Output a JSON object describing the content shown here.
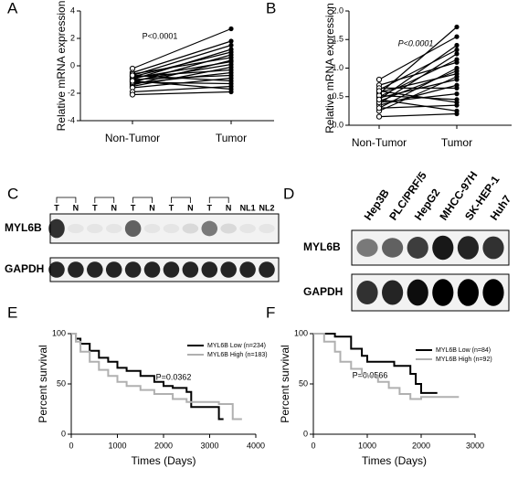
{
  "chart_data": [
    {
      "type": "paired",
      "panel": "A",
      "ylabel": "Relative mRNA expression",
      "categories": [
        "Non-Tumor",
        "Tumor"
      ],
      "annotation": "P<0.0001",
      "ylim": [
        -4,
        4
      ],
      "yticks": [
        -4,
        -2,
        0,
        2,
        4
      ],
      "pairs": [
        [
          -0.2,
          2.7
        ],
        [
          -0.5,
          1.8
        ],
        [
          -0.7,
          1.5
        ],
        [
          -1.0,
          1.2
        ],
        [
          -0.8,
          1.0
        ],
        [
          -1.2,
          0.8
        ],
        [
          -0.6,
          0.6
        ],
        [
          -1.4,
          0.4
        ],
        [
          -0.9,
          0.3
        ],
        [
          -1.1,
          0.1
        ],
        [
          -1.5,
          -0.1
        ],
        [
          -0.8,
          -0.3
        ],
        [
          -1.3,
          -0.5
        ],
        [
          -1.0,
          -0.7
        ],
        [
          -1.6,
          -0.9
        ],
        [
          -0.7,
          -1.1
        ],
        [
          -1.2,
          -1.3
        ],
        [
          -1.9,
          -1.5
        ],
        [
          -1.1,
          -1.7
        ],
        [
          -2.1,
          -1.9
        ]
      ]
    },
    {
      "type": "paired",
      "panel": "B",
      "ylabel": "Relative mRNA expression",
      "categories": [
        "Non-Tumor",
        "Tumor"
      ],
      "annotation": "P<0.0001",
      "ylim": [
        0,
        2
      ],
      "yticks": [
        {
          "value": 0,
          "label": "0.0"
        },
        {
          "value": 0.5,
          "label": "0.5"
        },
        {
          "value": 1,
          "label": "1.0"
        },
        {
          "value": 1.5,
          "label": "1.5"
        },
        {
          "value": 2,
          "label": "2.0"
        }
      ],
      "pairs": [
        [
          0.55,
          1.72
        ],
        [
          0.8,
          1.55
        ],
        [
          0.45,
          1.4
        ],
        [
          0.62,
          1.32
        ],
        [
          0.38,
          1.25
        ],
        [
          0.5,
          1.15
        ],
        [
          0.7,
          1.1
        ],
        [
          0.3,
          1.0
        ],
        [
          0.42,
          0.95
        ],
        [
          0.58,
          0.9
        ],
        [
          0.25,
          0.85
        ],
        [
          0.48,
          0.8
        ],
        [
          0.35,
          0.7
        ],
        [
          0.65,
          0.65
        ],
        [
          0.4,
          0.55
        ],
        [
          0.52,
          0.45
        ],
        [
          0.3,
          0.35
        ],
        [
          0.45,
          0.25
        ],
        [
          0.15,
          0.2
        ],
        [
          0.6,
          0.4
        ]
      ]
    },
    {
      "type": "step",
      "panel": "E",
      "ylabel": "Percent survival",
      "xlabel": "Times (Days)",
      "annotation": "P=0.0362",
      "xlim": [
        0,
        4000
      ],
      "xticks": [
        0,
        1000,
        2000,
        3000,
        4000
      ],
      "ylim": [
        0,
        100
      ],
      "yticks": [
        0,
        50,
        100
      ],
      "series": [
        {
          "name": "MYL6B Low (n=234)",
          "color": "#000000",
          "x": [
            0,
            100,
            200,
            400,
            600,
            800,
            1000,
            1200,
            1500,
            1800,
            2000,
            2200,
            2500,
            2600,
            3100,
            3200,
            3300
          ],
          "values": [
            100,
            95,
            90,
            83,
            76,
            72,
            66,
            63,
            58,
            52,
            48,
            46,
            42,
            27,
            27,
            15,
            15
          ]
        },
        {
          "name": "MYL6B High (n=183)",
          "color": "#b0b0b0",
          "x": [
            0,
            100,
            200,
            400,
            600,
            800,
            1000,
            1200,
            1500,
            1800,
            2200,
            2500,
            2900,
            3200,
            3500,
            3700
          ],
          "values": [
            100,
            92,
            82,
            72,
            64,
            58,
            52,
            48,
            44,
            40,
            35,
            32,
            32,
            30,
            15,
            15
          ]
        }
      ]
    },
    {
      "type": "step",
      "panel": "F",
      "ylabel": "Percent survival",
      "xlabel": "Times (Days)",
      "annotation": "P=0.0566",
      "xlim": [
        0,
        3000
      ],
      "xticks": [
        0,
        1000,
        2000,
        3000
      ],
      "ylim": [
        0,
        100
      ],
      "yticks": [
        0,
        50,
        100
      ],
      "series": [
        {
          "name": "MYL6B Low (n=84)",
          "color": "#000000",
          "x": [
            0,
            400,
            700,
            900,
            1000,
            1200,
            1500,
            1800,
            1900,
            2000,
            2100,
            2300
          ],
          "values": [
            100,
            97,
            85,
            78,
            72,
            72,
            68,
            60,
            50,
            41,
            41,
            41
          ]
        },
        {
          "name": "MYL6B High (n=92)",
          "color": "#b0b0b0",
          "x": [
            0,
            200,
            400,
            500,
            700,
            900,
            1000,
            1200,
            1400,
            1600,
            1800,
            2000,
            2200,
            2700
          ],
          "values": [
            100,
            92,
            82,
            72,
            65,
            60,
            58,
            52,
            46,
            40,
            35,
            37,
            37,
            37
          ]
        }
      ]
    }
  ],
  "blots": [
    {
      "panel": "C",
      "lanes": [
        "T",
        "N",
        "T",
        "N",
        "T",
        "N",
        "T",
        "N",
        "T",
        "N",
        "NL1",
        "NL2"
      ],
      "rows": [
        "MYL6B",
        "GAPDH"
      ]
    },
    {
      "panel": "D",
      "lanes": [
        "Hep3B",
        "PLC/PRF/5",
        "HepG2",
        "MHCC-97H",
        "SK-HEP-1",
        "Huh7"
      ],
      "rows": [
        "MYL6B",
        "GAPDH"
      ]
    }
  ]
}
